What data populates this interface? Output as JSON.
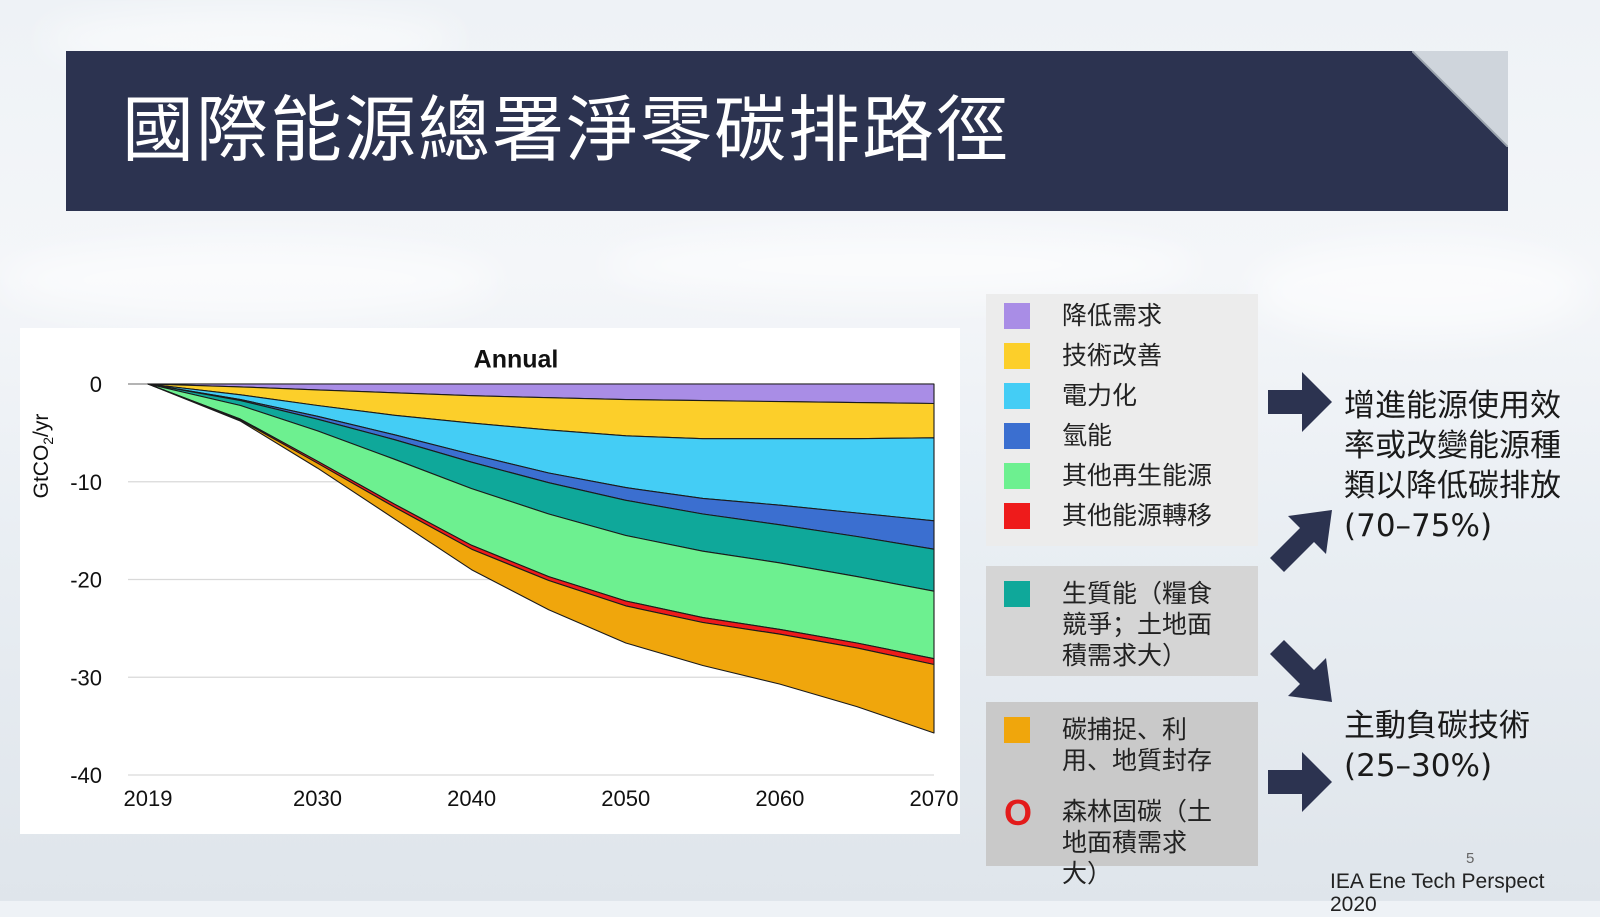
{
  "slide": {
    "title": "國際能源總署淨零碳排路徑",
    "page_number": "5",
    "source": "IEA Ene Tech Perspect",
    "source_year": "2020"
  },
  "legend": {
    "groups": [
      {
        "items": [
          {
            "label": "降低需求",
            "color": "#a98de6"
          },
          {
            "label": "技術改善",
            "color": "#fccf2a"
          },
          {
            "label": "電力化",
            "color": "#44cdf5"
          },
          {
            "label": "氫能",
            "color": "#3b6fd0"
          },
          {
            "label": "其他再生能源",
            "color": "#6df090"
          },
          {
            "label": "其他能源轉移",
            "color": "#ee1b1b"
          }
        ]
      },
      {
        "items": [
          {
            "label": "生質能（糧食競爭；土地面積需求大）",
            "color": "#0fa89a"
          }
        ]
      },
      {
        "items": [
          {
            "label": "碳捕捉、利用、地質封存",
            "color": "#f0a60c"
          },
          {
            "label": "森林固碳（土地面積需求大）",
            "color": "#e31b1b",
            "marker": "O"
          }
        ]
      }
    ]
  },
  "side_notes": {
    "efficiency": "增進能源使用效率或改變能源種類以降低碳排放(70–75%)",
    "negative": "主動負碳技術(25–30%)"
  },
  "chart_data": {
    "type": "area",
    "stacked": true,
    "title": "Annual",
    "ylabel": "GtCO2/yr",
    "xlabel": "",
    "x_ticks": [
      "2019",
      "2030",
      "2040",
      "2050",
      "2060",
      "2070"
    ],
    "y_ticks": [
      "0",
      "-10",
      "-20",
      "-30",
      "-40"
    ],
    "xlim": [
      2019,
      2070
    ],
    "ylim": [
      -40,
      0
    ],
    "grid": true,
    "x": [
      2019,
      2025,
      2030,
      2035,
      2040,
      2045,
      2050,
      2055,
      2060,
      2065,
      2070
    ],
    "series": [
      {
        "name": "降低需求",
        "color": "#a98de6",
        "values": [
          0,
          -0.3,
          -0.6,
          -0.9,
          -1.2,
          -1.4,
          -1.6,
          -1.7,
          -1.8,
          -1.9,
          -2.0
        ]
      },
      {
        "name": "技術改善",
        "color": "#fccf2a",
        "values": [
          0,
          -0.8,
          -1.6,
          -2.3,
          -2.8,
          -3.3,
          -3.7,
          -3.9,
          -3.8,
          -3.7,
          -3.5
        ]
      },
      {
        "name": "電力化",
        "color": "#44cdf5",
        "values": [
          0,
          -0.5,
          -1.1,
          -2.0,
          -3.2,
          -4.4,
          -5.3,
          -6.1,
          -6.8,
          -7.6,
          -8.5
        ]
      },
      {
        "name": "氫能",
        "color": "#3b6fd0",
        "values": [
          0,
          -0.1,
          -0.3,
          -0.5,
          -0.8,
          -1.0,
          -1.3,
          -1.6,
          -2.0,
          -2.4,
          -2.9
        ]
      },
      {
        "name": "生質能",
        "color": "#0fa89a",
        "values": [
          0,
          -0.5,
          -1.2,
          -2.0,
          -2.7,
          -3.2,
          -3.6,
          -3.8,
          -3.9,
          -4.1,
          -4.3
        ]
      },
      {
        "name": "其他再生能源",
        "color": "#6df090",
        "values": [
          0,
          -1.4,
          -3.1,
          -4.6,
          -5.8,
          -6.4,
          -6.7,
          -6.8,
          -6.8,
          -6.8,
          -6.9
        ]
      },
      {
        "name": "其他能源轉移",
        "color": "#ee1b1b",
        "values": [
          0,
          -0.1,
          -0.2,
          -0.3,
          -0.4,
          -0.4,
          -0.5,
          -0.5,
          -0.5,
          -0.5,
          -0.6
        ]
      },
      {
        "name": "碳捕捉、利用、地質封存",
        "color": "#f0a60c",
        "values": [
          0,
          -0.1,
          -0.5,
          -1.2,
          -2.1,
          -3.0,
          -3.8,
          -4.4,
          -5.1,
          -6.0,
          -7.0
        ]
      }
    ]
  }
}
